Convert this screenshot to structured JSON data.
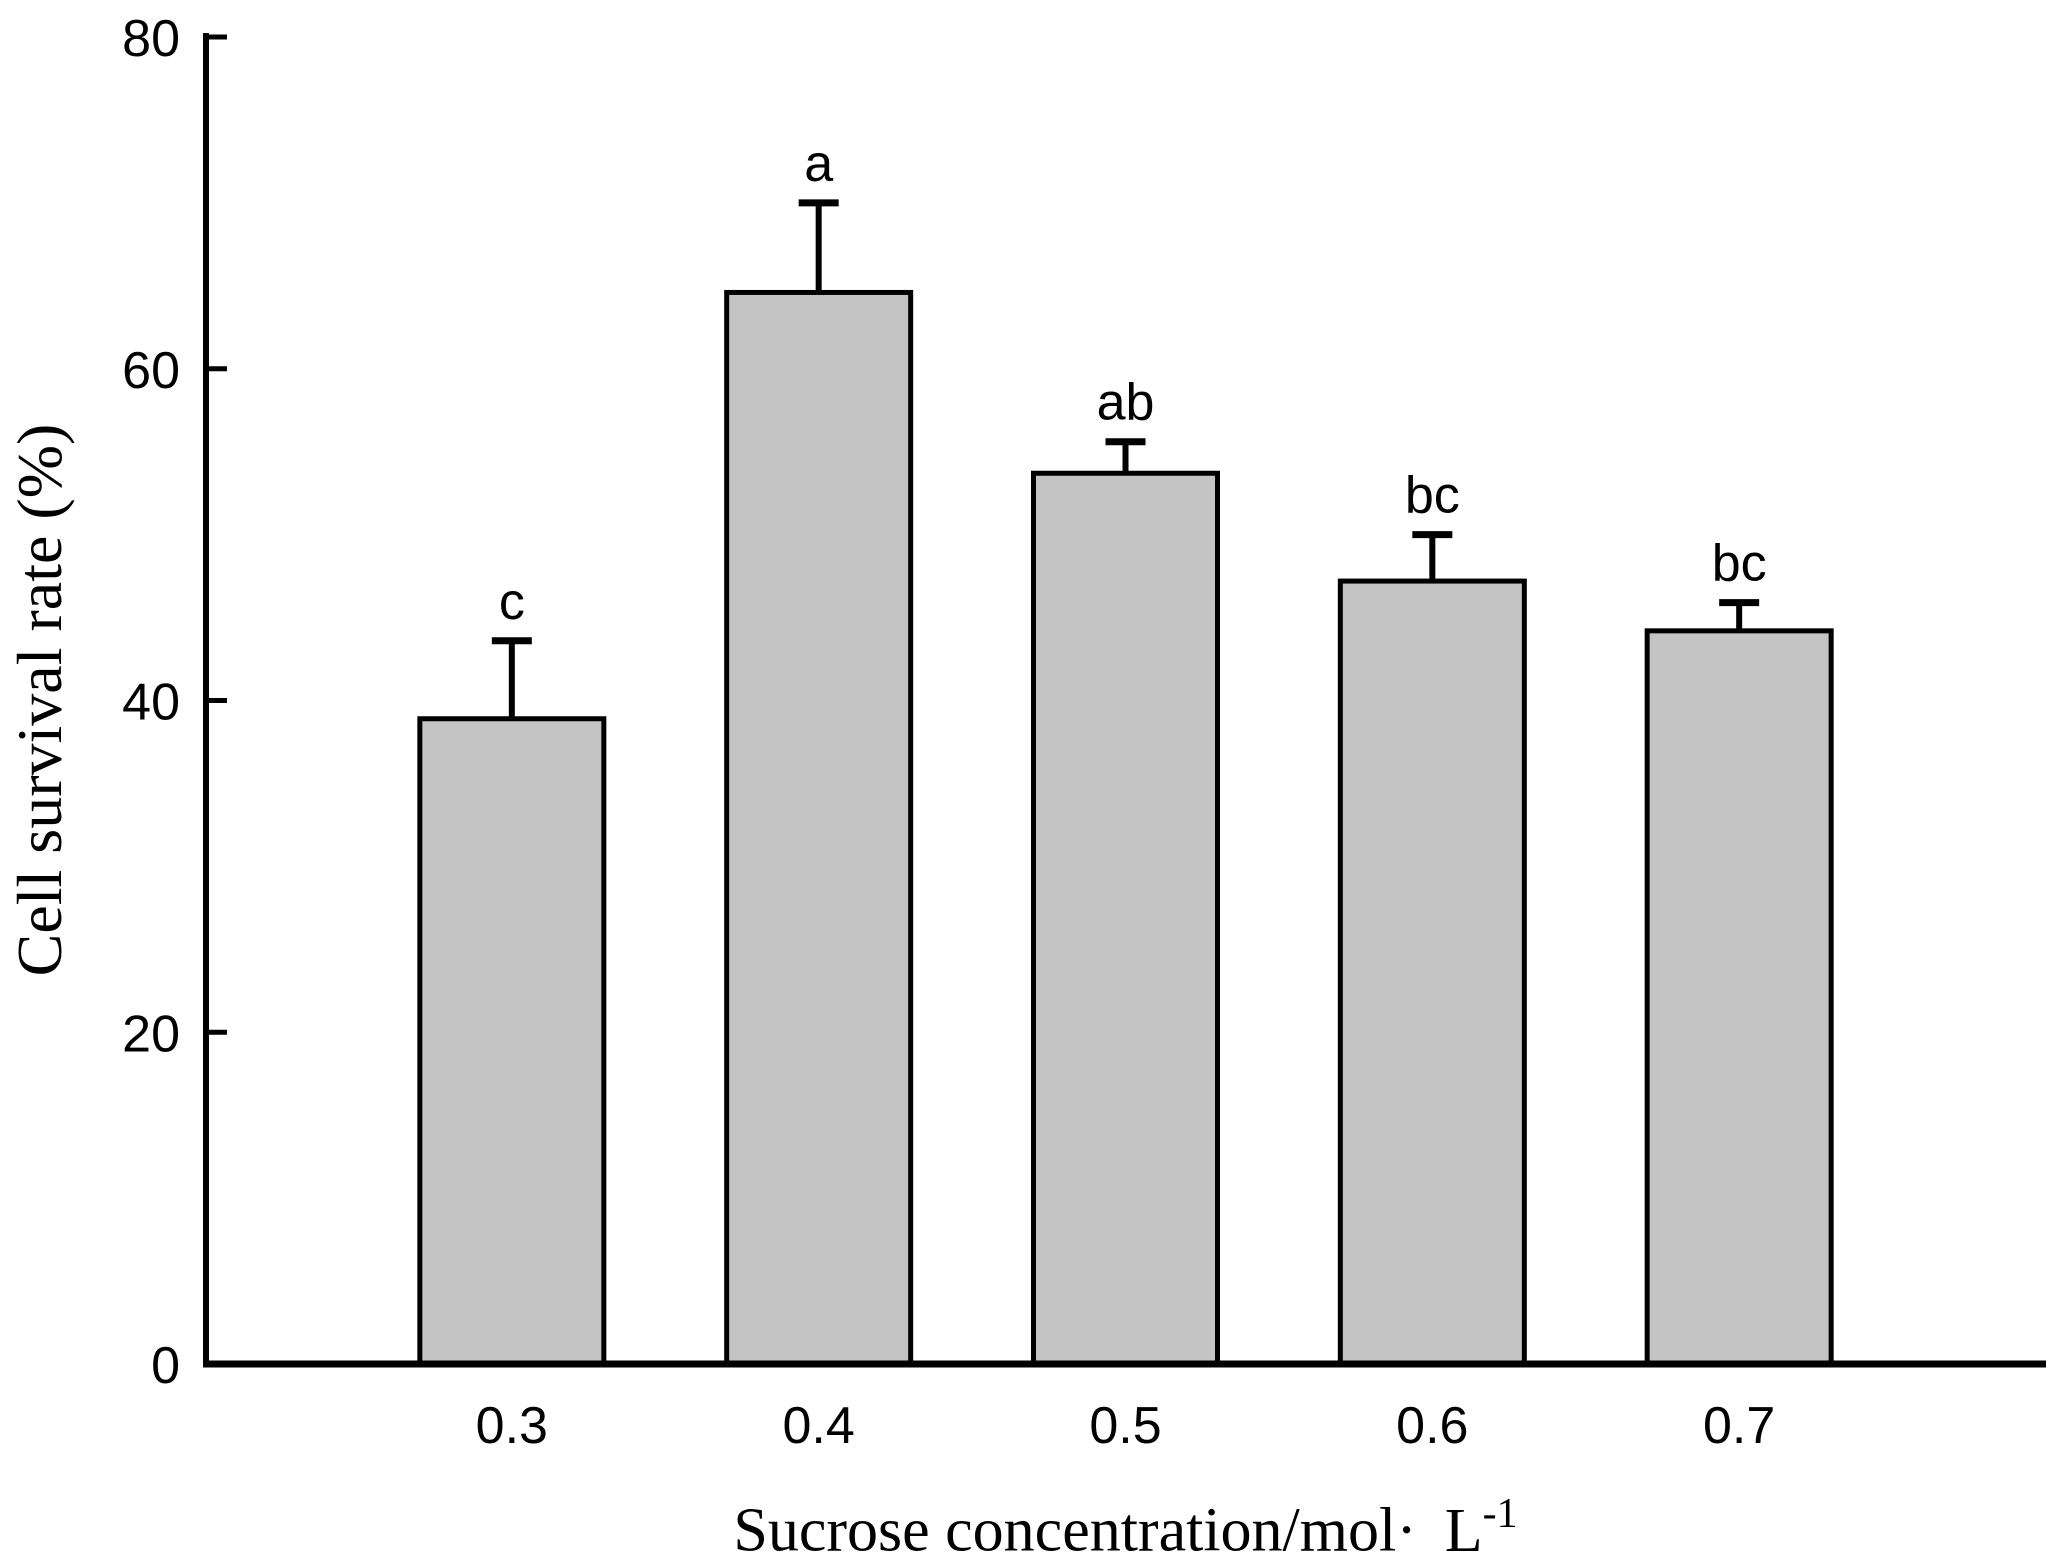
{
  "figure": {
    "background_color": "#ffffff",
    "bar_fill_color": "#c4c4c4",
    "line_color": "#000000"
  },
  "chart_data": {
    "type": "bar",
    "title": "",
    "xlabel_main": "Sucrose concentration/mol·",
    "xlabel_unit": "L",
    "xlabel_unit_sup": "-1",
    "ylabel": "Cell survival rate (%)",
    "categories": [
      "0.3",
      "0.4",
      "0.5",
      "0.6",
      "0.7"
    ],
    "values": [
      38.9,
      64.6,
      53.7,
      47.2,
      44.2
    ],
    "errors": [
      4.7,
      5.4,
      1.9,
      2.8,
      1.7
    ],
    "sig_labels": [
      "c",
      "a",
      "ab",
      "bc",
      "bc"
    ],
    "ylim": [
      0,
      80
    ],
    "yticks": [
      0,
      20,
      40,
      60,
      80
    ],
    "grid": false,
    "legend": null
  }
}
